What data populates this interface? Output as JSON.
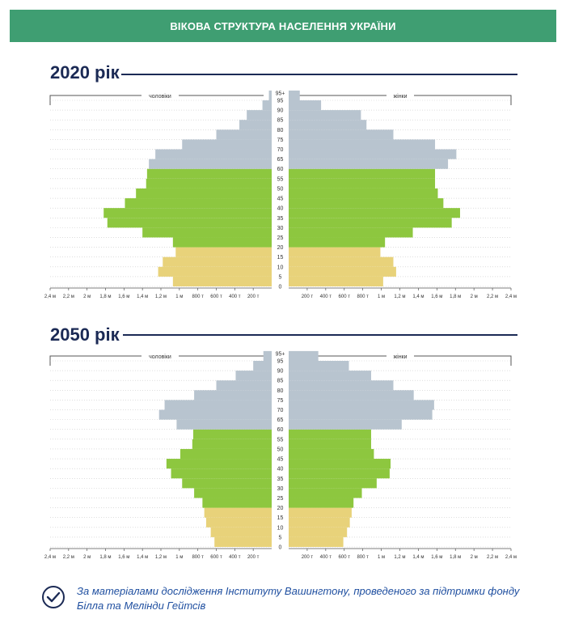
{
  "header": {
    "title": "ВІКОВА СТРУКТУРА НАСЕЛЕННЯ УКРАЇНИ"
  },
  "colors": {
    "banner": "#3f9e72",
    "elderly": "#b8c4cf",
    "working": "#8dc73f",
    "young": "#e8d27a",
    "title": "#1b2a55",
    "footer": "#1f4fa0"
  },
  "labels": {
    "male": "чоловіки",
    "female": "жінки",
    "age_ticks": [
      "0",
      "5",
      "10",
      "15",
      "20",
      "25",
      "30",
      "35",
      "40",
      "45",
      "50",
      "55",
      "60",
      "65",
      "70",
      "75",
      "80",
      "85",
      "90",
      "95",
      "95+"
    ],
    "x_ticks_male": [
      "2,4 м",
      "2,2 м",
      "2 м",
      "1,8 м",
      "1,6 м",
      "1,4 м",
      "1,2 м",
      "1 м",
      "800 т",
      "600 т",
      "400 т",
      "200 т"
    ],
    "x_ticks_female": [
      "200 т",
      "400 т",
      "600 т",
      "800 т",
      "1 м",
      "1,2 м",
      "1,4 м",
      "1,6 м",
      "1,8 м",
      "2 м",
      "2,2 м",
      "2,4 м"
    ]
  },
  "chart_data": [
    {
      "type": "bar",
      "title": "2020 рік",
      "age_groups": [
        "0",
        "5",
        "10",
        "15",
        "20",
        "25",
        "30",
        "35",
        "40",
        "45",
        "50",
        "55",
        "60",
        "65",
        "70",
        "75",
        "80",
        "85",
        "90",
        "95"
      ],
      "xlim": [
        0,
        2.4
      ],
      "unit": "million",
      "series": [
        {
          "name": "чоловіки",
          "values": [
            1.07,
            1.23,
            1.18,
            1.04,
            1.07,
            1.4,
            1.78,
            1.82,
            1.59,
            1.47,
            1.36,
            1.35,
            1.33,
            1.26,
            0.97,
            0.6,
            0.35,
            0.27,
            0.1,
            0.03
          ]
        },
        {
          "name": "жінки",
          "values": [
            1.02,
            1.16,
            1.13,
            0.99,
            1.04,
            1.34,
            1.76,
            1.85,
            1.67,
            1.61,
            1.58,
            1.58,
            1.72,
            1.81,
            1.58,
            1.13,
            0.84,
            0.78,
            0.35,
            0.12
          ]
        }
      ]
    },
    {
      "type": "bar",
      "title": "2050 рік",
      "age_groups": [
        "0",
        "5",
        "10",
        "15",
        "20",
        "25",
        "30",
        "35",
        "40",
        "45",
        "50",
        "55",
        "60",
        "65",
        "70",
        "75",
        "80",
        "85",
        "90",
        "95"
      ],
      "xlim": [
        0,
        2.4
      ],
      "unit": "million",
      "series": [
        {
          "name": "чоловіки",
          "values": [
            0.62,
            0.66,
            0.71,
            0.73,
            0.75,
            0.84,
            0.97,
            1.09,
            1.14,
            0.99,
            0.86,
            0.85,
            1.03,
            1.22,
            1.16,
            0.84,
            0.6,
            0.39,
            0.2,
            0.09
          ]
        },
        {
          "name": "жінки",
          "values": [
            0.59,
            0.63,
            0.66,
            0.68,
            0.7,
            0.79,
            0.95,
            1.09,
            1.1,
            0.92,
            0.89,
            0.89,
            1.22,
            1.55,
            1.57,
            1.35,
            1.13,
            0.89,
            0.65,
            0.32
          ]
        }
      ]
    }
  ],
  "footer": {
    "text": "За матеріалами дослідження Інституту Вашингтону, проведеного за підтримки фонду Білла та Мелінди Гейтсів"
  }
}
